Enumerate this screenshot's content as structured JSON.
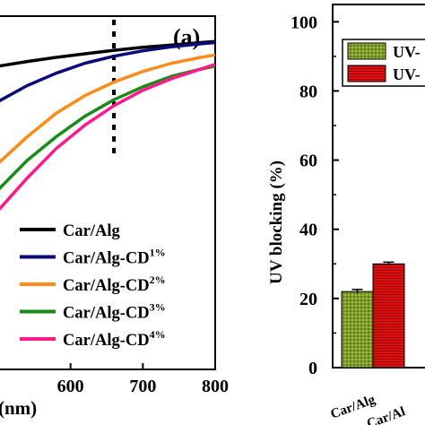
{
  "chart_data": [
    {
      "type": "line",
      "panel_label": "(a)",
      "xlabel_visible": "(nm)",
      "xlim": [
        500,
        800
      ],
      "ylim": [
        40,
        100
      ],
      "xticks": [
        600,
        700,
        800
      ],
      "marker_x": 660,
      "series": [
        {
          "name": "Car/Alg",
          "color": "#000000",
          "x": [
            500,
            540,
            580,
            620,
            660,
            700,
            740,
            780,
            800
          ],
          "y": [
            91.5,
            92.3,
            93.0,
            93.6,
            94.2,
            94.7,
            95.1,
            95.5,
            95.7
          ]
        },
        {
          "name": "Car/Alg-CD1%",
          "base": "Car/Alg-CD",
          "sup": "1%",
          "color": "#0a0a7a",
          "x": [
            500,
            540,
            580,
            620,
            660,
            700,
            740,
            780,
            800
          ],
          "y": [
            85.5,
            88.2,
            90.3,
            92.0,
            93.2,
            94.1,
            94.8,
            95.3,
            95.5
          ]
        },
        {
          "name": "Car/Alg-CD2%",
          "base": "Car/Alg-CD",
          "sup": "2%",
          "color": "#ff8c1a",
          "x": [
            500,
            540,
            580,
            620,
            660,
            700,
            740,
            780,
            800
          ],
          "y": [
            75.0,
            79.5,
            83.5,
            86.5,
            88.8,
            90.6,
            92.0,
            93.0,
            93.4
          ]
        },
        {
          "name": "Car/Alg-CD3%",
          "base": "Car/Alg-CD",
          "sup": "3%",
          "color": "#1a8a1a",
          "x": [
            500,
            540,
            580,
            620,
            660,
            700,
            740,
            780,
            800
          ],
          "y": [
            70.5,
            75.5,
            79.5,
            83.0,
            85.8,
            88.0,
            89.8,
            91.0,
            91.5
          ]
        },
        {
          "name": "Car/Alg-CD4%",
          "base": "Car/Alg-CD",
          "sup": "4%",
          "color": "#ff1a8c",
          "x": [
            500,
            540,
            580,
            620,
            660,
            700,
            740,
            780,
            800
          ],
          "y": [
            67.0,
            72.5,
            77.5,
            81.5,
            84.8,
            87.4,
            89.4,
            91.0,
            91.8
          ]
        }
      ]
    },
    {
      "type": "bar",
      "ylabel": "UV blocking (%)",
      "ylim": [
        0,
        105
      ],
      "yticks": [
        0,
        20,
        40,
        60,
        80,
        100
      ],
      "categories_visible": [
        "Car/Alg",
        "Car/Al"
      ],
      "legend_visible": [
        "UV-",
        "UV-"
      ],
      "series": [
        {
          "color": "#6b8e23",
          "values": [
            22
          ],
          "errors": [
            0.6
          ]
        },
        {
          "color": "#e01010",
          "values": [
            30
          ],
          "errors": [
            0.5
          ]
        }
      ]
    }
  ]
}
